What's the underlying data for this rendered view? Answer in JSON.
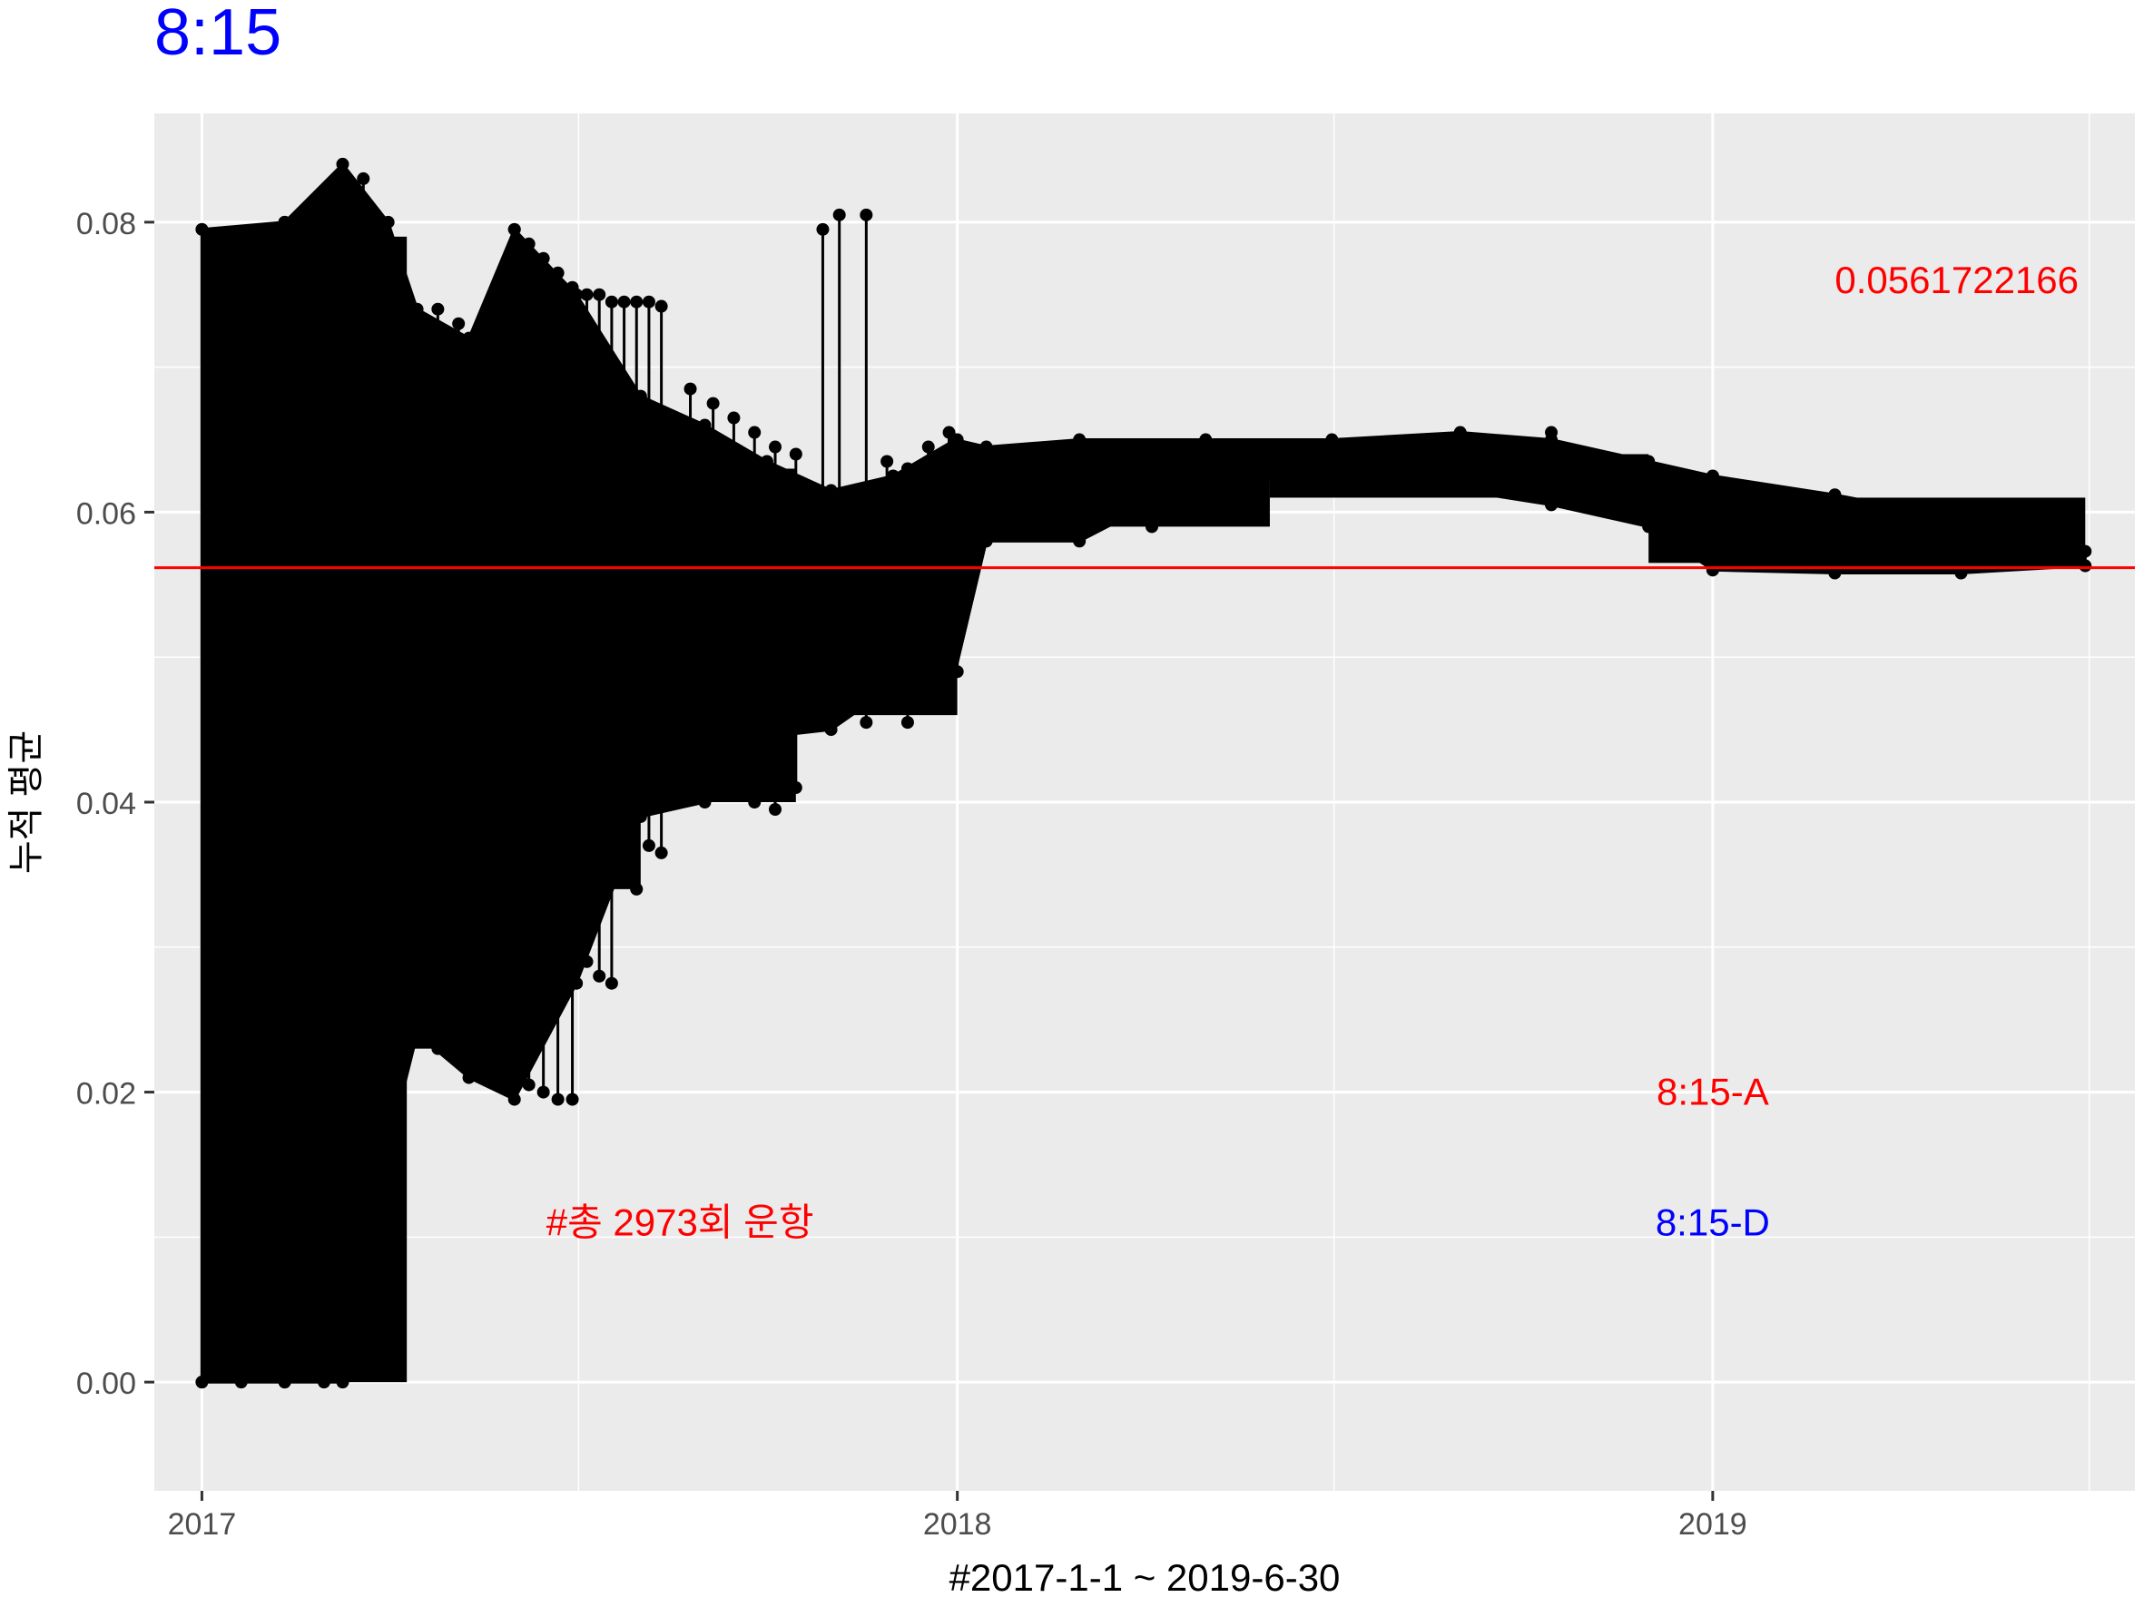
{
  "chart_data": {
    "type": "line",
    "title": "8:15",
    "title_color": "#0000ff",
    "xlabel": "#2017-1-1 ~ 2019-6-30",
    "ylabel": "누적 평균",
    "x_range": [
      "2016-12-09",
      "2019-07-24"
    ],
    "ylim": [
      -0.0075,
      0.0875
    ],
    "x_ticks": [
      {
        "value": "2017-01-01",
        "label": "2017"
      },
      {
        "value": "2018-01-01",
        "label": "2018"
      },
      {
        "value": "2019-01-01",
        "label": "2019"
      }
    ],
    "x_minor_ticks": [
      "2017-07-02",
      "2018-07-02",
      "2019-07-02"
    ],
    "y_ticks": [
      {
        "value": 0.0,
        "label": "0.00"
      },
      {
        "value": 0.02,
        "label": "0.02"
      },
      {
        "value": 0.04,
        "label": "0.04"
      },
      {
        "value": 0.06,
        "label": "0.06"
      },
      {
        "value": 0.08,
        "label": "0.08"
      }
    ],
    "y_minor_ticks": [
      0.01,
      0.03,
      0.05,
      0.07
    ],
    "grid": true,
    "panel_background": "#ebebeb",
    "grid_color": "#ffffff",
    "series_color": "#000000",
    "reference_line": {
      "y": 0.0561722166,
      "color": "#ff0000"
    },
    "annotations": [
      {
        "text": "0.0561722166",
        "x": "2019-03-01",
        "y": 0.076,
        "color": "#ff0000",
        "anchor": "start"
      },
      {
        "text": "8:15-A",
        "x": "2019-01-01",
        "y": 0.02,
        "color": "#ff0000",
        "anchor": "middle"
      },
      {
        "text": "8:15-D",
        "x": "2019-01-01",
        "y": 0.011,
        "color": "#0000ff",
        "anchor": "middle"
      },
      {
        "text": "#총 2973회 운항",
        "x": "2017-08-20",
        "y": 0.011,
        "color": "#ff0000",
        "anchor": "middle"
      }
    ],
    "envelope": [
      {
        "x": "2017-01-01",
        "max": 0.0795,
        "min": 0.0
      },
      {
        "x": "2017-02-10",
        "max": 0.08,
        "min": 0.0
      },
      {
        "x": "2017-03-10",
        "max": 0.084,
        "min": 0.0
      },
      {
        "x": "2017-04-01",
        "max": 0.08,
        "min": 0.016
      },
      {
        "x": "2017-04-15",
        "max": 0.074,
        "min": 0.024
      },
      {
        "x": "2017-05-10",
        "max": 0.072,
        "min": 0.021
      },
      {
        "x": "2017-06-01",
        "max": 0.0795,
        "min": 0.0195
      },
      {
        "x": "2017-07-01",
        "max": 0.075,
        "min": 0.0275
      },
      {
        "x": "2017-08-01",
        "max": 0.068,
        "min": 0.039
      },
      {
        "x": "2017-09-01",
        "max": 0.066,
        "min": 0.04
      },
      {
        "x": "2017-10-01",
        "max": 0.0635,
        "min": 0.0445
      },
      {
        "x": "2017-11-01",
        "max": 0.0615,
        "min": 0.045
      },
      {
        "x": "2017-12-01",
        "max": 0.0625,
        "min": 0.048
      },
      {
        "x": "2017-12-31",
        "max": 0.065,
        "min": 0.049
      },
      {
        "x": "2018-01-15",
        "max": 0.0645,
        "min": 0.058
      },
      {
        "x": "2018-03-01",
        "max": 0.065,
        "min": 0.058
      },
      {
        "x": "2018-05-01",
        "max": 0.065,
        "min": 0.0625
      },
      {
        "x": "2018-07-01",
        "max": 0.065,
        "min": 0.062
      },
      {
        "x": "2018-09-01",
        "max": 0.0655,
        "min": 0.0615
      },
      {
        "x": "2018-10-15",
        "max": 0.065,
        "min": 0.0605
      },
      {
        "x": "2018-12-01",
        "max": 0.0635,
        "min": 0.059
      },
      {
        "x": "2019-01-01",
        "max": 0.0625,
        "min": 0.056
      },
      {
        "x": "2019-03-01",
        "max": 0.0612,
        "min": 0.0558
      },
      {
        "x": "2019-05-01",
        "max": 0.0595,
        "min": 0.0558
      },
      {
        "x": "2019-06-30",
        "max": 0.0573,
        "min": 0.0563
      }
    ],
    "vertical_segments": [
      {
        "x": "2017-01-01",
        "y1": 0.0,
        "y2": 0.0795
      },
      {
        "x": "2017-01-20",
        "y1": 0.0,
        "y2": 0.078
      },
      {
        "x": "2017-02-10",
        "y1": 0.0,
        "y2": 0.08
      },
      {
        "x": "2017-03-01",
        "y1": 0.0,
        "y2": 0.082
      },
      {
        "x": "2017-03-20",
        "y1": 0.017,
        "y2": 0.083
      },
      {
        "x": "2017-04-25",
        "y1": 0.023,
        "y2": 0.074
      },
      {
        "x": "2017-05-05",
        "y1": 0.0225,
        "y2": 0.073
      },
      {
        "x": "2017-05-15",
        "y1": 0.022,
        "y2": 0.0715
      },
      {
        "x": "2017-05-25",
        "y1": 0.0215,
        "y2": 0.071
      },
      {
        "x": "2017-06-01",
        "y1": 0.021,
        "y2": 0.0795
      },
      {
        "x": "2017-06-08",
        "y1": 0.0205,
        "y2": 0.0785
      },
      {
        "x": "2017-06-15",
        "y1": 0.02,
        "y2": 0.0775
      },
      {
        "x": "2017-06-22",
        "y1": 0.0195,
        "y2": 0.0765
      },
      {
        "x": "2017-06-29",
        "y1": 0.0195,
        "y2": 0.0755
      },
      {
        "x": "2017-07-06",
        "y1": 0.029,
        "y2": 0.075
      },
      {
        "x": "2017-07-12",
        "y1": 0.028,
        "y2": 0.075
      },
      {
        "x": "2017-07-18",
        "y1": 0.0275,
        "y2": 0.0745
      },
      {
        "x": "2017-07-24",
        "y1": 0.035,
        "y2": 0.0745
      },
      {
        "x": "2017-07-30",
        "y1": 0.034,
        "y2": 0.0745
      },
      {
        "x": "2017-08-05",
        "y1": 0.037,
        "y2": 0.0745
      },
      {
        "x": "2017-08-11",
        "y1": 0.0365,
        "y2": 0.0742
      },
      {
        "x": "2017-08-25",
        "y1": 0.041,
        "y2": 0.0685
      },
      {
        "x": "2017-09-05",
        "y1": 0.041,
        "y2": 0.0675
      },
      {
        "x": "2017-09-15",
        "y1": 0.0405,
        "y2": 0.0665
      },
      {
        "x": "2017-09-25",
        "y1": 0.04,
        "y2": 0.0655
      },
      {
        "x": "2017-10-05",
        "y1": 0.0395,
        "y2": 0.0645
      },
      {
        "x": "2017-10-15",
        "y1": 0.041,
        "y2": 0.064
      },
      {
        "x": "2017-10-28",
        "y1": 0.0465,
        "y2": 0.0795
      },
      {
        "x": "2017-11-05",
        "y1": 0.046,
        "y2": 0.0805
      },
      {
        "x": "2017-11-18",
        "y1": 0.0455,
        "y2": 0.0805
      },
      {
        "x": "2017-11-28",
        "y1": 0.0465,
        "y2": 0.0635
      },
      {
        "x": "2017-12-08",
        "y1": 0.0455,
        "y2": 0.063
      },
      {
        "x": "2017-12-18",
        "y1": 0.0485,
        "y2": 0.0645
      },
      {
        "x": "2017-12-28",
        "y1": 0.0495,
        "y2": 0.0655
      },
      {
        "x": "2018-01-01",
        "y1": 0.049,
        "y2": 0.065
      },
      {
        "x": "2018-03-01",
        "y1": 0.059,
        "y2": 0.0645
      },
      {
        "x": "2018-03-20",
        "y1": 0.0595,
        "y2": 0.064
      },
      {
        "x": "2018-04-05",
        "y1": 0.059,
        "y2": 0.0635
      },
      {
        "x": "2018-04-20",
        "y1": 0.0605,
        "y2": 0.064
      },
      {
        "x": "2018-10-15",
        "y1": 0.061,
        "y2": 0.0655
      }
    ],
    "bands": [
      {
        "x0": "2017-01-01",
        "x1": "2017-04-10",
        "y0": 0.0,
        "y1": 0.079
      },
      {
        "x0": "2017-04-10",
        "x1": "2017-06-10",
        "y0": 0.023,
        "y1": 0.068
      },
      {
        "x0": "2017-06-10",
        "x1": "2017-08-01",
        "y0": 0.034,
        "y1": 0.068
      },
      {
        "x0": "2017-08-01",
        "x1": "2017-10-15",
        "y0": 0.04,
        "y1": 0.063
      },
      {
        "x0": "2017-10-15",
        "x1": "2018-01-01",
        "y0": 0.046,
        "y1": 0.061
      },
      {
        "x0": "2018-01-01",
        "x1": "2018-06-01",
        "y0": 0.059,
        "y1": 0.063
      },
      {
        "x0": "2018-06-01",
        "x1": "2018-12-01",
        "y0": 0.061,
        "y1": 0.064
      },
      {
        "x0": "2018-12-01",
        "x1": "2019-06-30",
        "y0": 0.0565,
        "y1": 0.061
      }
    ]
  }
}
